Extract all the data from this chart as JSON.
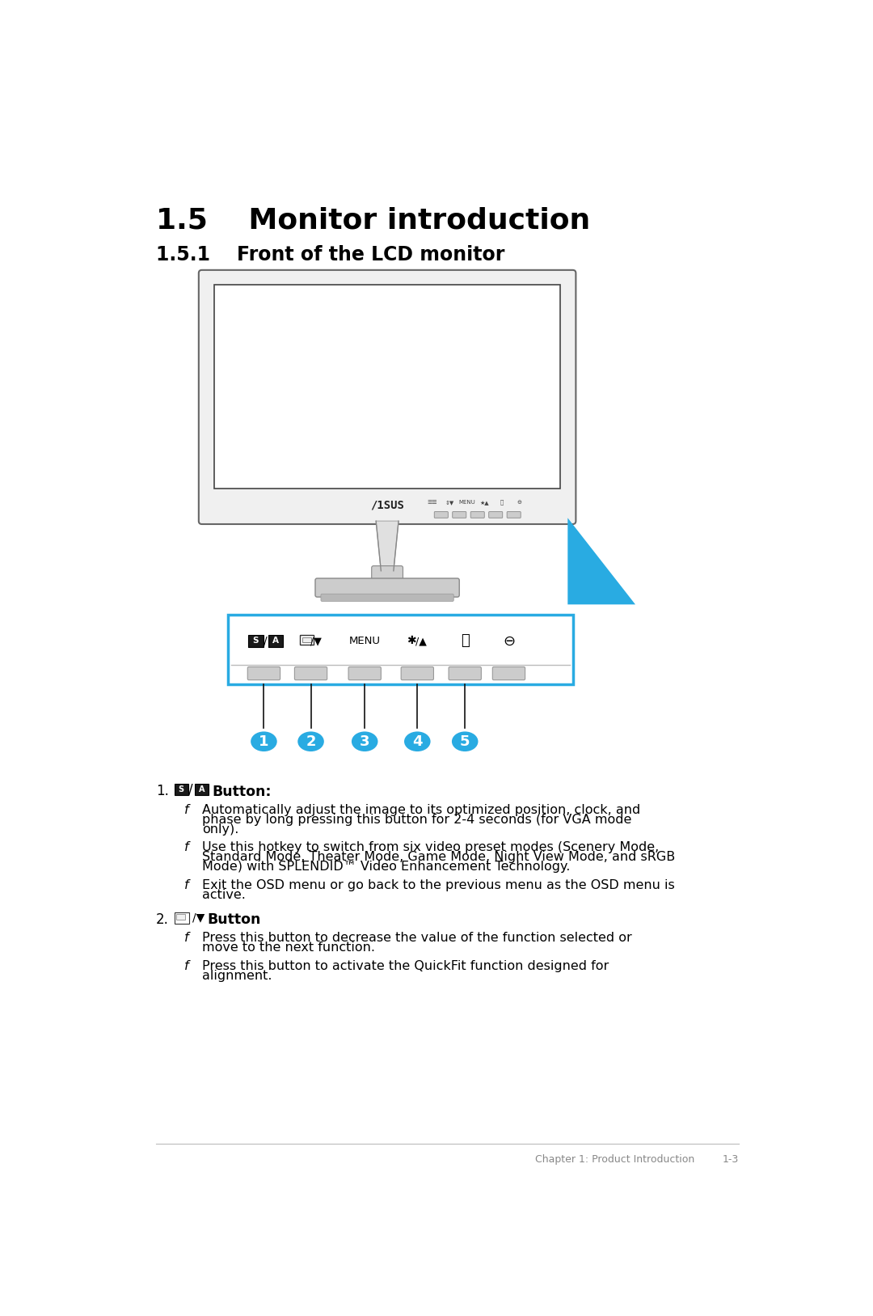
{
  "title": "1.5    Monitor introduction",
  "subtitle": "1.5.1    Front of the LCD monitor",
  "bg_color": "#ffffff",
  "title_fontsize": 26,
  "subtitle_fontsize": 17,
  "body_fontsize": 11.5,
  "accent_color": "#29abe2",
  "text_color": "#000000",
  "footer_text": "Chapter 1: Product Introduction",
  "footer_page": "1-3",
  "button_numbers": [
    "1",
    "2",
    "3",
    "4",
    "5"
  ],
  "item1_bullets": [
    "Automatically adjust the image to its optimized position, clock, and phase by long pressing this button for 2-4 seconds (for VGA mode only).",
    "Use this hotkey to switch from six video preset modes (Scenery Mode, Standard Mode, Theater Mode, Game Mode, Night View Mode, and sRGB Mode) with SPLENDID™ Video Enhancement Technology.",
    "Exit the OSD menu or go back to the previous menu as the OSD menu is active."
  ],
  "item2_bullets": [
    "Press this button to decrease the value of the function selected or move to the next function.",
    "Press this button to activate the QuickFit function designed for alignment."
  ]
}
